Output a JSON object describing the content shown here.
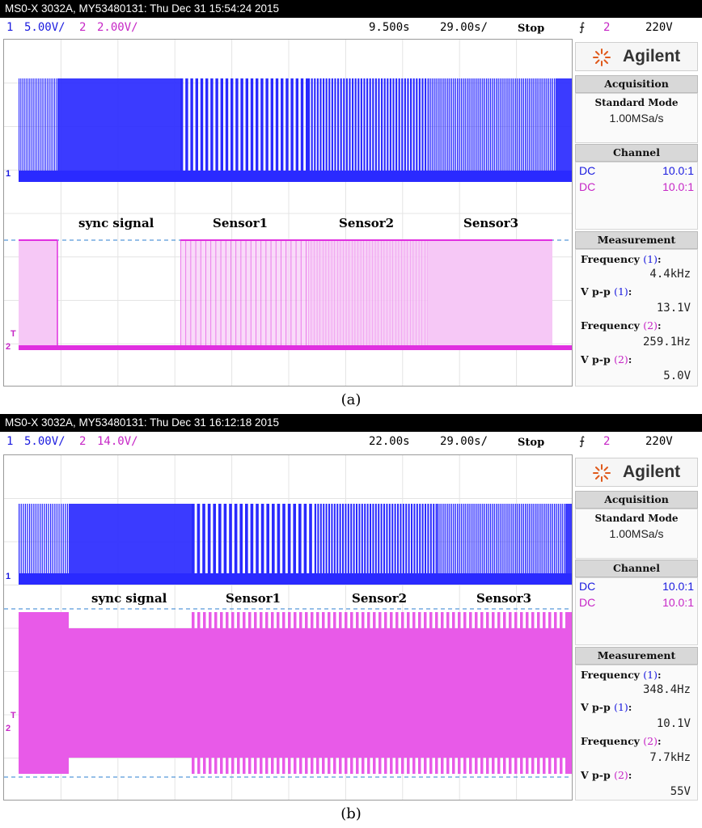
{
  "panels": [
    {
      "title": "MS0-X 3032A, MY53480131: Thu Dec 31 15:54:24 2015",
      "ch1_num": "1",
      "ch1_scale": "5.00V/",
      "ch2_num": "2",
      "ch2_scale": "2.00V/",
      "time_offset": "9.500s",
      "time_scale": "29.00s/",
      "run_state": "Stop",
      "trigger_source": "2",
      "trigger_level": "220V",
      "logo": "Agilent",
      "acquisition": {
        "header": "Acquisition",
        "mode": "Standard Mode",
        "rate": "1.00MSa/s"
      },
      "channel": {
        "header": "Channel",
        "rows": [
          {
            "coupling": "DC",
            "probe": "10.0:1"
          },
          {
            "coupling": "DC",
            "probe": "10.0:1"
          }
        ]
      },
      "measurement": {
        "header": "Measurement",
        "items": [
          {
            "label": "Frequency",
            "ch": "(1)",
            "value": "4.4kHz"
          },
          {
            "label": "V p-p",
            "ch": "(1)",
            "value": "13.1V"
          },
          {
            "label": "Frequency",
            "ch": "(2)",
            "value": "259.1Hz"
          },
          {
            "label": "V p-p",
            "ch": "(2)",
            "value": "5.0V"
          }
        ]
      },
      "annotations": [
        "sync signal",
        "Sensor1",
        "Sensor2",
        "Sensor3"
      ],
      "ch1_marker": "1",
      "ch2_marker": "2",
      "trig_marker": "T",
      "caption": "(a)",
      "colors": {
        "ch1": "#2a2aff",
        "ch2": "#e030e0",
        "ch2_fill": "#f6c8f6",
        "ref_line": "#2e7fd0"
      }
    },
    {
      "title": "MS0-X 3032A, MY53480131: Thu Dec 31 16:12:18 2015",
      "ch1_num": "1",
      "ch1_scale": "5.00V/",
      "ch2_num": "2",
      "ch2_scale": "14.0V/",
      "time_offset": "22.00s",
      "time_scale": "29.00s/",
      "run_state": "Stop",
      "trigger_source": "2",
      "trigger_level": "220V",
      "logo": "Agilent",
      "acquisition": {
        "header": "Acquisition",
        "mode": "Standard Mode",
        "rate": "1.00MSa/s"
      },
      "channel": {
        "header": "Channel",
        "rows": [
          {
            "coupling": "DC",
            "probe": "10.0:1"
          },
          {
            "coupling": "DC",
            "probe": "10.0:1"
          }
        ]
      },
      "measurement": {
        "header": "Measurement",
        "items": [
          {
            "label": "Frequency",
            "ch": "(1)",
            "value": "348.4Hz"
          },
          {
            "label": "V p-p",
            "ch": "(1)",
            "value": "10.1V"
          },
          {
            "label": "Frequency",
            "ch": "(2)",
            "value": "7.7kHz"
          },
          {
            "label": "V p-p",
            "ch": "(2)",
            "value": "55V"
          }
        ]
      },
      "annotations": [
        "sync signal",
        "Sensor1",
        "Sensor2",
        "Sensor3"
      ],
      "ch1_marker": "1",
      "ch2_marker": "2",
      "trig_marker": "T",
      "caption": "(b)",
      "colors": {
        "ch1": "#2a2aff",
        "ch2": "#e030e0",
        "ch2_fill": "#e85ae8",
        "ref_line": "#2e7fd0"
      }
    }
  ]
}
